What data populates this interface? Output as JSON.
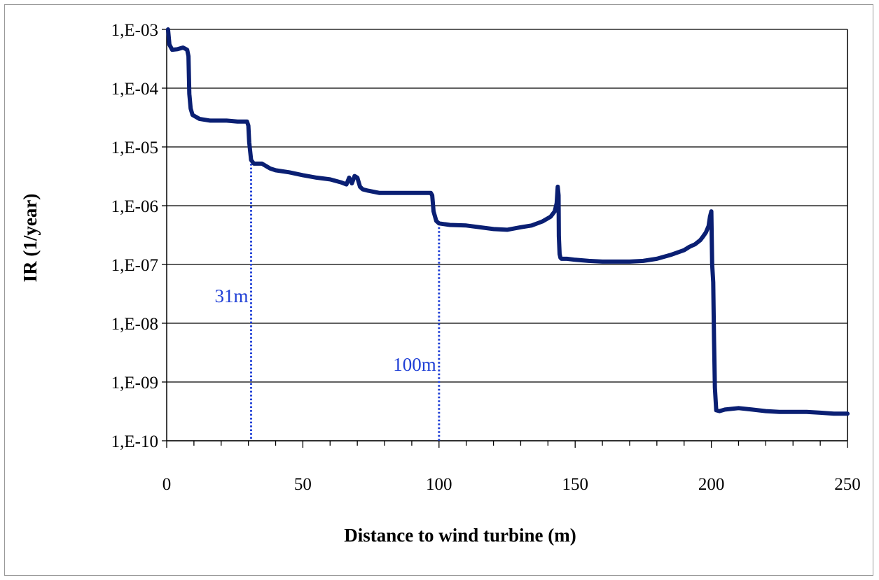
{
  "chart_data": {
    "type": "line",
    "title": "",
    "xlabel": "Distance to wind turbine (m)",
    "ylabel": "IR (1/year)",
    "xlim": [
      0,
      250
    ],
    "ylim_log10": [
      -10,
      -3
    ],
    "y_scale": "log",
    "grid": "horizontal",
    "legend": "none",
    "x_ticks": [
      {
        "value": 0,
        "label": "0"
      },
      {
        "value": 50,
        "label": "50"
      },
      {
        "value": 100,
        "label": "100"
      },
      {
        "value": 150,
        "label": "150"
      },
      {
        "value": 200,
        "label": "200"
      },
      {
        "value": 250,
        "label": "250"
      }
    ],
    "y_ticks": [
      {
        "value": 0.001,
        "label": "1,E-03"
      },
      {
        "value": 0.0001,
        "label": "1,E-04"
      },
      {
        "value": 1e-05,
        "label": "1,E-05"
      },
      {
        "value": 1e-06,
        "label": "1,E-06"
      },
      {
        "value": 1e-07,
        "label": "1,E-07"
      },
      {
        "value": 1e-08,
        "label": "1,E-08"
      },
      {
        "value": 1e-09,
        "label": "1,E-09"
      },
      {
        "value": 1e-10,
        "label": "1,E-10"
      }
    ],
    "series": [
      {
        "color": "#0a1f73",
        "x": [
          0.5,
          1,
          2,
          4,
          6,
          7.5,
          8,
          8.3,
          8.8,
          9.5,
          12,
          16,
          22,
          26,
          29.5,
          30,
          30.3,
          31,
          32,
          35,
          38,
          40,
          45,
          50,
          55,
          60,
          64,
          66,
          67,
          68,
          69,
          70,
          71,
          72,
          74,
          78,
          85,
          92,
          97,
          97.5,
          98,
          99,
          100,
          104,
          110,
          115,
          120,
          125,
          130,
          134,
          138,
          141,
          142.5,
          143.2,
          143.6,
          143.9,
          144,
          144.3,
          144.6,
          145,
          147,
          150,
          155,
          160,
          165,
          170,
          175,
          180,
          185,
          190,
          192,
          194,
          196,
          197,
          198,
          199,
          199.5,
          200,
          200.3,
          200.7,
          201,
          201.3,
          201.8,
          203,
          205,
          210,
          215,
          220,
          225,
          230,
          235,
          240,
          245,
          250
        ],
        "y": [
          0.001,
          0.00055,
          0.00045,
          0.00046,
          0.00049,
          0.00045,
          0.00035,
          8e-05,
          4.5e-05,
          3.5e-05,
          3e-05,
          2.8e-05,
          2.8e-05,
          2.7e-05,
          2.7e-05,
          2.3e-05,
          1.2e-05,
          6e-06,
          5.2e-06,
          5.2e-06,
          4.3e-06,
          4e-06,
          3.7e-06,
          3.3e-06,
          3e-06,
          2.8e-06,
          2.5e-06,
          2.3e-06,
          3e-06,
          2.4e-06,
          3.2e-06,
          3e-06,
          2.1e-06,
          1.9e-06,
          1.8e-06,
          1.65e-06,
          1.65e-06,
          1.65e-06,
          1.65e-06,
          1.5e-06,
          8e-07,
          5.5e-07,
          5e-07,
          4.7e-07,
          4.6e-07,
          4.3e-07,
          4e-07,
          3.9e-07,
          4.3e-07,
          4.6e-07,
          5.4e-07,
          6.5e-07,
          8e-07,
          1.1e-06,
          2.1e-06,
          1.5e-06,
          3e-07,
          1.5e-07,
          1.3e-07,
          1.25e-07,
          1.25e-07,
          1.2e-07,
          1.15e-07,
          1.12e-07,
          1.12e-07,
          1.12e-07,
          1.15e-07,
          1.25e-07,
          1.45e-07,
          1.75e-07,
          2e-07,
          2.2e-07,
          2.6e-07,
          3e-07,
          3.5e-07,
          4.5e-07,
          6.5e-07,
          8e-07,
          1e-07,
          5e-08,
          5e-09,
          8e-10,
          3.3e-10,
          3.2e-10,
          3.4e-10,
          3.6e-10,
          3.4e-10,
          3.2e-10,
          3.1e-10,
          3.1e-10,
          3.1e-10,
          3e-10,
          2.9e-10,
          2.9e-10
        ]
      }
    ],
    "markers": [
      {
        "x": 31,
        "label": "31m",
        "color": "#1f3fd6"
      },
      {
        "x": 100,
        "label": "100m",
        "color": "#1f3fd6"
      }
    ]
  }
}
